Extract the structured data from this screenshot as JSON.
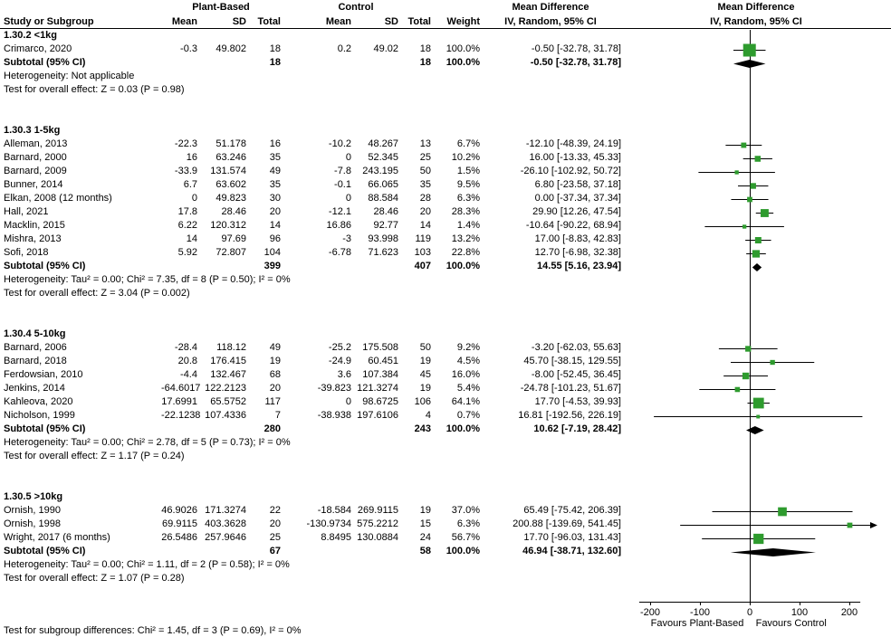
{
  "header": {
    "plant_based": "Plant-Based",
    "control": "Control",
    "mean_difference": "Mean Difference",
    "study_or_subgroup": "Study or Subgroup",
    "mean": "Mean",
    "sd": "SD",
    "total": "Total",
    "weight": "Weight",
    "iv_random": "IV, Random, 95% CI"
  },
  "labels": {
    "subtotal": "Subtotal (95% CI)"
  },
  "footer": {
    "subgroup_test": "Test for subgroup differences: Chi² = 1.45, df = 3 (P = 0.69), I² = 0%"
  },
  "chart_data": {
    "type": "forest",
    "effect_measure": "Mean Difference",
    "model": "IV, Random, 95% CI",
    "style": {
      "square_color": "#2e9b2e",
      "diamond_color": "#000000",
      "line_color": "#000000"
    },
    "axis": {
      "ticks": [
        -200,
        -100,
        0,
        100,
        200
      ],
      "xlim": [
        -250,
        250
      ],
      "favours_left": "Favours Plant-Based",
      "favours_right": "Favours Control"
    },
    "groups": [
      {
        "title": "1.30.2 <1kg",
        "studies": [
          {
            "study": "Crimarco, 2020",
            "pb_mean": "-0.3",
            "pb_sd": "49.802",
            "pb_total": "18",
            "c_mean": "0.2",
            "c_sd": "49.02",
            "c_total": "18",
            "weight": "100.0%",
            "weight_pct": 100.0,
            "ci": "-0.50 [-32.78, 31.78]",
            "est": -0.5,
            "lo": -32.78,
            "hi": 31.78
          }
        ],
        "subtotal": {
          "pb_total": "18",
          "c_total": "18",
          "weight": "100.0%",
          "ci": "-0.50 [-32.78, 31.78]",
          "est": -0.5,
          "lo": -32.78,
          "hi": 31.78
        },
        "heterogeneity": "Heterogeneity: Not applicable",
        "effect": "Test for overall effect: Z = 0.03 (P = 0.98)"
      },
      {
        "title": "1.30.3 1-5kg",
        "studies": [
          {
            "study": "Alleman, 2013",
            "pb_mean": "-22.3",
            "pb_sd": "51.178",
            "pb_total": "16",
            "c_mean": "-10.2",
            "c_sd": "48.267",
            "c_total": "13",
            "weight": "6.7%",
            "weight_pct": 6.7,
            "ci": "-12.10 [-48.39, 24.19]",
            "est": -12.1,
            "lo": -48.39,
            "hi": 24.19
          },
          {
            "study": "Barnard, 2000",
            "pb_mean": "16",
            "pb_sd": "63.246",
            "pb_total": "35",
            "c_mean": "0",
            "c_sd": "52.345",
            "c_total": "25",
            "weight": "10.2%",
            "weight_pct": 10.2,
            "ci": "16.00 [-13.33, 45.33]",
            "est": 16.0,
            "lo": -13.33,
            "hi": 45.33
          },
          {
            "study": "Barnard, 2009",
            "pb_mean": "-33.9",
            "pb_sd": "131.574",
            "pb_total": "49",
            "c_mean": "-7.8",
            "c_sd": "243.195",
            "c_total": "50",
            "weight": "1.5%",
            "weight_pct": 1.5,
            "ci": "-26.10 [-102.92, 50.72]",
            "est": -26.1,
            "lo": -102.92,
            "hi": 50.72
          },
          {
            "study": "Bunner, 2014",
            "pb_mean": "6.7",
            "pb_sd": "63.602",
            "pb_total": "35",
            "c_mean": "-0.1",
            "c_sd": "66.065",
            "c_total": "35",
            "weight": "9.5%",
            "weight_pct": 9.5,
            "ci": "6.80 [-23.58, 37.18]",
            "est": 6.8,
            "lo": -23.58,
            "hi": 37.18
          },
          {
            "study": "Elkan, 2008 (12 months)",
            "pb_mean": "0",
            "pb_sd": "49.823",
            "pb_total": "30",
            "c_mean": "0",
            "c_sd": "88.584",
            "c_total": "28",
            "weight": "6.3%",
            "weight_pct": 6.3,
            "ci": "0.00 [-37.34, 37.34]",
            "est": 0.0,
            "lo": -37.34,
            "hi": 37.34
          },
          {
            "study": "Hall, 2021",
            "pb_mean": "17.8",
            "pb_sd": "28.46",
            "pb_total": "20",
            "c_mean": "-12.1",
            "c_sd": "28.46",
            "c_total": "20",
            "weight": "28.3%",
            "weight_pct": 28.3,
            "ci": "29.90 [12.26, 47.54]",
            "est": 29.9,
            "lo": 12.26,
            "hi": 47.54
          },
          {
            "study": "Macklin, 2015",
            "pb_mean": "6.22",
            "pb_sd": "120.312",
            "pb_total": "14",
            "c_mean": "16.86",
            "c_sd": "92.77",
            "c_total": "14",
            "weight": "1.4%",
            "weight_pct": 1.4,
            "ci": "-10.64 [-90.22, 68.94]",
            "est": -10.64,
            "lo": -90.22,
            "hi": 68.94
          },
          {
            "study": "Mishra, 2013",
            "pb_mean": "14",
            "pb_sd": "97.69",
            "pb_total": "96",
            "c_mean": "-3",
            "c_sd": "93.998",
            "c_total": "119",
            "weight": "13.2%",
            "weight_pct": 13.2,
            "ci": "17.00 [-8.83, 42.83]",
            "est": 17.0,
            "lo": -8.83,
            "hi": 42.83
          },
          {
            "study": "Sofi, 2018",
            "pb_mean": "5.92",
            "pb_sd": "72.807",
            "pb_total": "104",
            "c_mean": "-6.78",
            "c_sd": "71.623",
            "c_total": "103",
            "weight": "22.8%",
            "weight_pct": 22.8,
            "ci": "12.70 [-6.98, 32.38]",
            "est": 12.7,
            "lo": -6.98,
            "hi": 32.38
          }
        ],
        "subtotal": {
          "pb_total": "399",
          "c_total": "407",
          "weight": "100.0%",
          "ci": "14.55 [5.16, 23.94]",
          "est": 14.55,
          "lo": 5.16,
          "hi": 23.94
        },
        "heterogeneity": "Heterogeneity: Tau² = 0.00; Chi² = 7.35, df = 8 (P = 0.50); I² = 0%",
        "effect": "Test for overall effect: Z = 3.04 (P = 0.002)"
      },
      {
        "title": "1.30.4 5-10kg",
        "studies": [
          {
            "study": "Barnard, 2006",
            "pb_mean": "-28.4",
            "pb_sd": "118.12",
            "pb_total": "49",
            "c_mean": "-25.2",
            "c_sd": "175.508",
            "c_total": "50",
            "weight": "9.2%",
            "weight_pct": 9.2,
            "ci": "-3.20 [-62.03, 55.63]",
            "est": -3.2,
            "lo": -62.03,
            "hi": 55.63
          },
          {
            "study": "Barnard, 2018",
            "pb_mean": "20.8",
            "pb_sd": "176.415",
            "pb_total": "19",
            "c_mean": "-24.9",
            "c_sd": "60.451",
            "c_total": "19",
            "weight": "4.5%",
            "weight_pct": 4.5,
            "ci": "45.70 [-38.15, 129.55]",
            "est": 45.7,
            "lo": -38.15,
            "hi": 129.55
          },
          {
            "study": "Ferdowsian, 2010",
            "pb_mean": "-4.4",
            "pb_sd": "132.467",
            "pb_total": "68",
            "c_mean": "3.6",
            "c_sd": "107.384",
            "c_total": "45",
            "weight": "16.0%",
            "weight_pct": 16.0,
            "ci": "-8.00 [-52.45, 36.45]",
            "est": -8.0,
            "lo": -52.45,
            "hi": 36.45
          },
          {
            "study": "Jenkins, 2014",
            "pb_mean": "-64.6017",
            "pb_sd": "122.2123",
            "pb_total": "20",
            "c_mean": "-39.823",
            "c_sd": "121.3274",
            "c_total": "19",
            "weight": "5.4%",
            "weight_pct": 5.4,
            "ci": "-24.78 [-101.23, 51.67]",
            "est": -24.78,
            "lo": -101.23,
            "hi": 51.67
          },
          {
            "study": "Kahleova, 2020",
            "pb_mean": "17.6991",
            "pb_sd": "65.5752",
            "pb_total": "117",
            "c_mean": "0",
            "c_sd": "98.6725",
            "c_total": "106",
            "weight": "64.1%",
            "weight_pct": 64.1,
            "ci": "17.70 [-4.53, 39.93]",
            "est": 17.7,
            "lo": -4.53,
            "hi": 39.93
          },
          {
            "study": "Nicholson, 1999",
            "pb_mean": "-22.1238",
            "pb_sd": "107.4336",
            "pb_total": "7",
            "c_mean": "-38.938",
            "c_sd": "197.6106",
            "c_total": "4",
            "weight": "0.7%",
            "weight_pct": 0.7,
            "ci": "16.81 [-192.56, 226.19]",
            "est": 16.81,
            "lo": -192.56,
            "hi": 226.19
          }
        ],
        "subtotal": {
          "pb_total": "280",
          "c_total": "243",
          "weight": "100.0%",
          "ci": "10.62 [-7.19, 28.42]",
          "est": 10.62,
          "lo": -7.19,
          "hi": 28.42
        },
        "heterogeneity": "Heterogeneity: Tau² = 0.00; Chi² = 2.78, df = 5 (P = 0.73); I² = 0%",
        "effect": "Test for overall effect: Z = 1.17 (P = 0.24)"
      },
      {
        "title": "1.30.5 >10kg",
        "studies": [
          {
            "study": "Ornish, 1990",
            "pb_mean": "46.9026",
            "pb_sd": "171.3274",
            "pb_total": "22",
            "c_mean": "-18.584",
            "c_sd": "269.9115",
            "c_total": "19",
            "weight": "37.0%",
            "weight_pct": 37.0,
            "ci": "65.49 [-75.42, 206.39]",
            "est": 65.49,
            "lo": -75.42,
            "hi": 206.39
          },
          {
            "study": "Ornish, 1998",
            "pb_mean": "69.9115",
            "pb_sd": "403.3628",
            "pb_total": "20",
            "c_mean": "-130.9734",
            "c_sd": "575.2212",
            "c_total": "15",
            "weight": "6.3%",
            "weight_pct": 6.3,
            "ci": "200.88 [-139.69, 541.45]",
            "est": 200.88,
            "lo": -139.69,
            "hi": 541.45
          },
          {
            "study": "Wright, 2017 (6 months)",
            "pb_mean": "26.5486",
            "pb_sd": "257.9646",
            "pb_total": "25",
            "c_mean": "8.8495",
            "c_sd": "130.0884",
            "c_total": "24",
            "weight": "56.7%",
            "weight_pct": 56.7,
            "ci": "17.70 [-96.03, 131.43]",
            "est": 17.7,
            "lo": -96.03,
            "hi": 131.43
          }
        ],
        "subtotal": {
          "pb_total": "67",
          "c_total": "58",
          "weight": "100.0%",
          "ci": "46.94 [-38.71, 132.60]",
          "est": 46.94,
          "lo": -38.71,
          "hi": 132.6
        },
        "heterogeneity": "Heterogeneity: Tau² = 0.00; Chi² = 1.11, df = 2 (P = 0.58); I² = 0%",
        "effect": "Test for overall effect: Z = 1.07 (P = 0.28)"
      }
    ]
  }
}
